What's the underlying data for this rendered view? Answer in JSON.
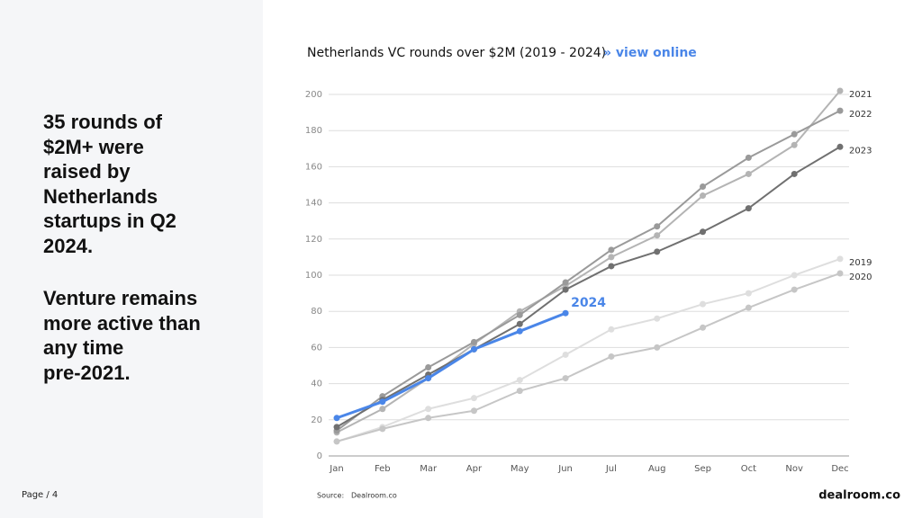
{
  "left_panel": {
    "paragraphs": [
      [
        "35 rounds of",
        "$2M+ were",
        "raised by",
        "Netherlands",
        "startups in Q2",
        "2024."
      ],
      [
        "Venture remains",
        "more active than",
        "any time",
        "pre-2021."
      ]
    ]
  },
  "footer": {
    "page": "Page / 4",
    "source_label": "Source:",
    "source": "Dealroom.co",
    "logo": "dealroom.co"
  },
  "chart_data": {
    "type": "line",
    "title": "Netherlands VC rounds over $2M (2019 - 2024)",
    "link": "»  view online",
    "categories": [
      "Jan",
      "Feb",
      "Mar",
      "Apr",
      "May",
      "Jun",
      "Jul",
      "Aug",
      "Sep",
      "Oct",
      "Nov",
      "Dec"
    ],
    "series": [
      {
        "name": "2019",
        "color": "#dedede",
        "values": [
          8,
          16,
          26,
          32,
          42,
          56,
          70,
          76,
          84,
          90,
          100,
          109
        ]
      },
      {
        "name": "2020",
        "color": "#c6c6c6",
        "values": [
          8,
          15,
          21,
          25,
          36,
          43,
          55,
          60,
          71,
          82,
          92,
          101
        ]
      },
      {
        "name": "2021",
        "color": "#b4b4b4",
        "values": [
          13,
          26,
          43,
          62,
          80,
          94,
          110,
          122,
          144,
          156,
          172,
          202
        ]
      },
      {
        "name": "2022",
        "color": "#9a9a9a",
        "values": [
          14,
          33,
          49,
          63,
          78,
          96,
          114,
          127,
          149,
          165,
          178,
          191
        ]
      },
      {
        "name": "2023",
        "color": "#707070",
        "values": [
          16,
          31,
          45,
          59,
          73,
          92,
          105,
          113,
          124,
          137,
          156,
          171
        ]
      },
      {
        "name": "2024",
        "color": "#4a86e8",
        "values": [
          21,
          30,
          43,
          59,
          69,
          79,
          null,
          null,
          null,
          null,
          null,
          null
        ]
      }
    ],
    "ylim": [
      0,
      200
    ],
    "yticks": [
      0,
      20,
      40,
      60,
      80,
      100,
      120,
      140,
      160,
      180,
      200
    ],
    "grid": true
  }
}
